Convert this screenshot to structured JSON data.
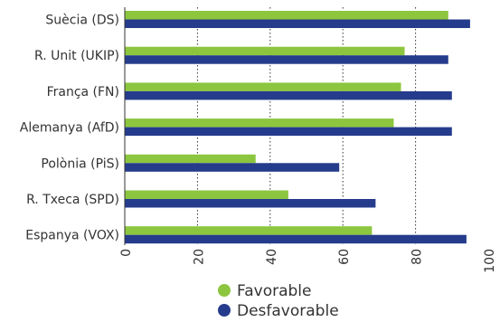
{
  "chart_data": {
    "type": "bar",
    "orientation": "horizontal",
    "categories": [
      "Suècia (DS)",
      "R. Unit (UKIP)",
      "França (FN)",
      "Alemanya (AfD)",
      "Polònia (PiS)",
      "R. Txeca (SPD)",
      "Espanya (VOX)"
    ],
    "series": [
      {
        "name": "Favorable",
        "color": "#8cc63f",
        "values": [
          89,
          77,
          76,
          74,
          36,
          45,
          68
        ]
      },
      {
        "name": "Desfavorable",
        "color": "#253b8c",
        "values": [
          95,
          89,
          90,
          90,
          59,
          69,
          94
        ]
      }
    ],
    "xlim": [
      0,
      100
    ],
    "xticks": [
      0,
      20,
      40,
      60,
      80,
      100
    ],
    "grid": "vertical dotted",
    "legend_position": "bottom"
  }
}
